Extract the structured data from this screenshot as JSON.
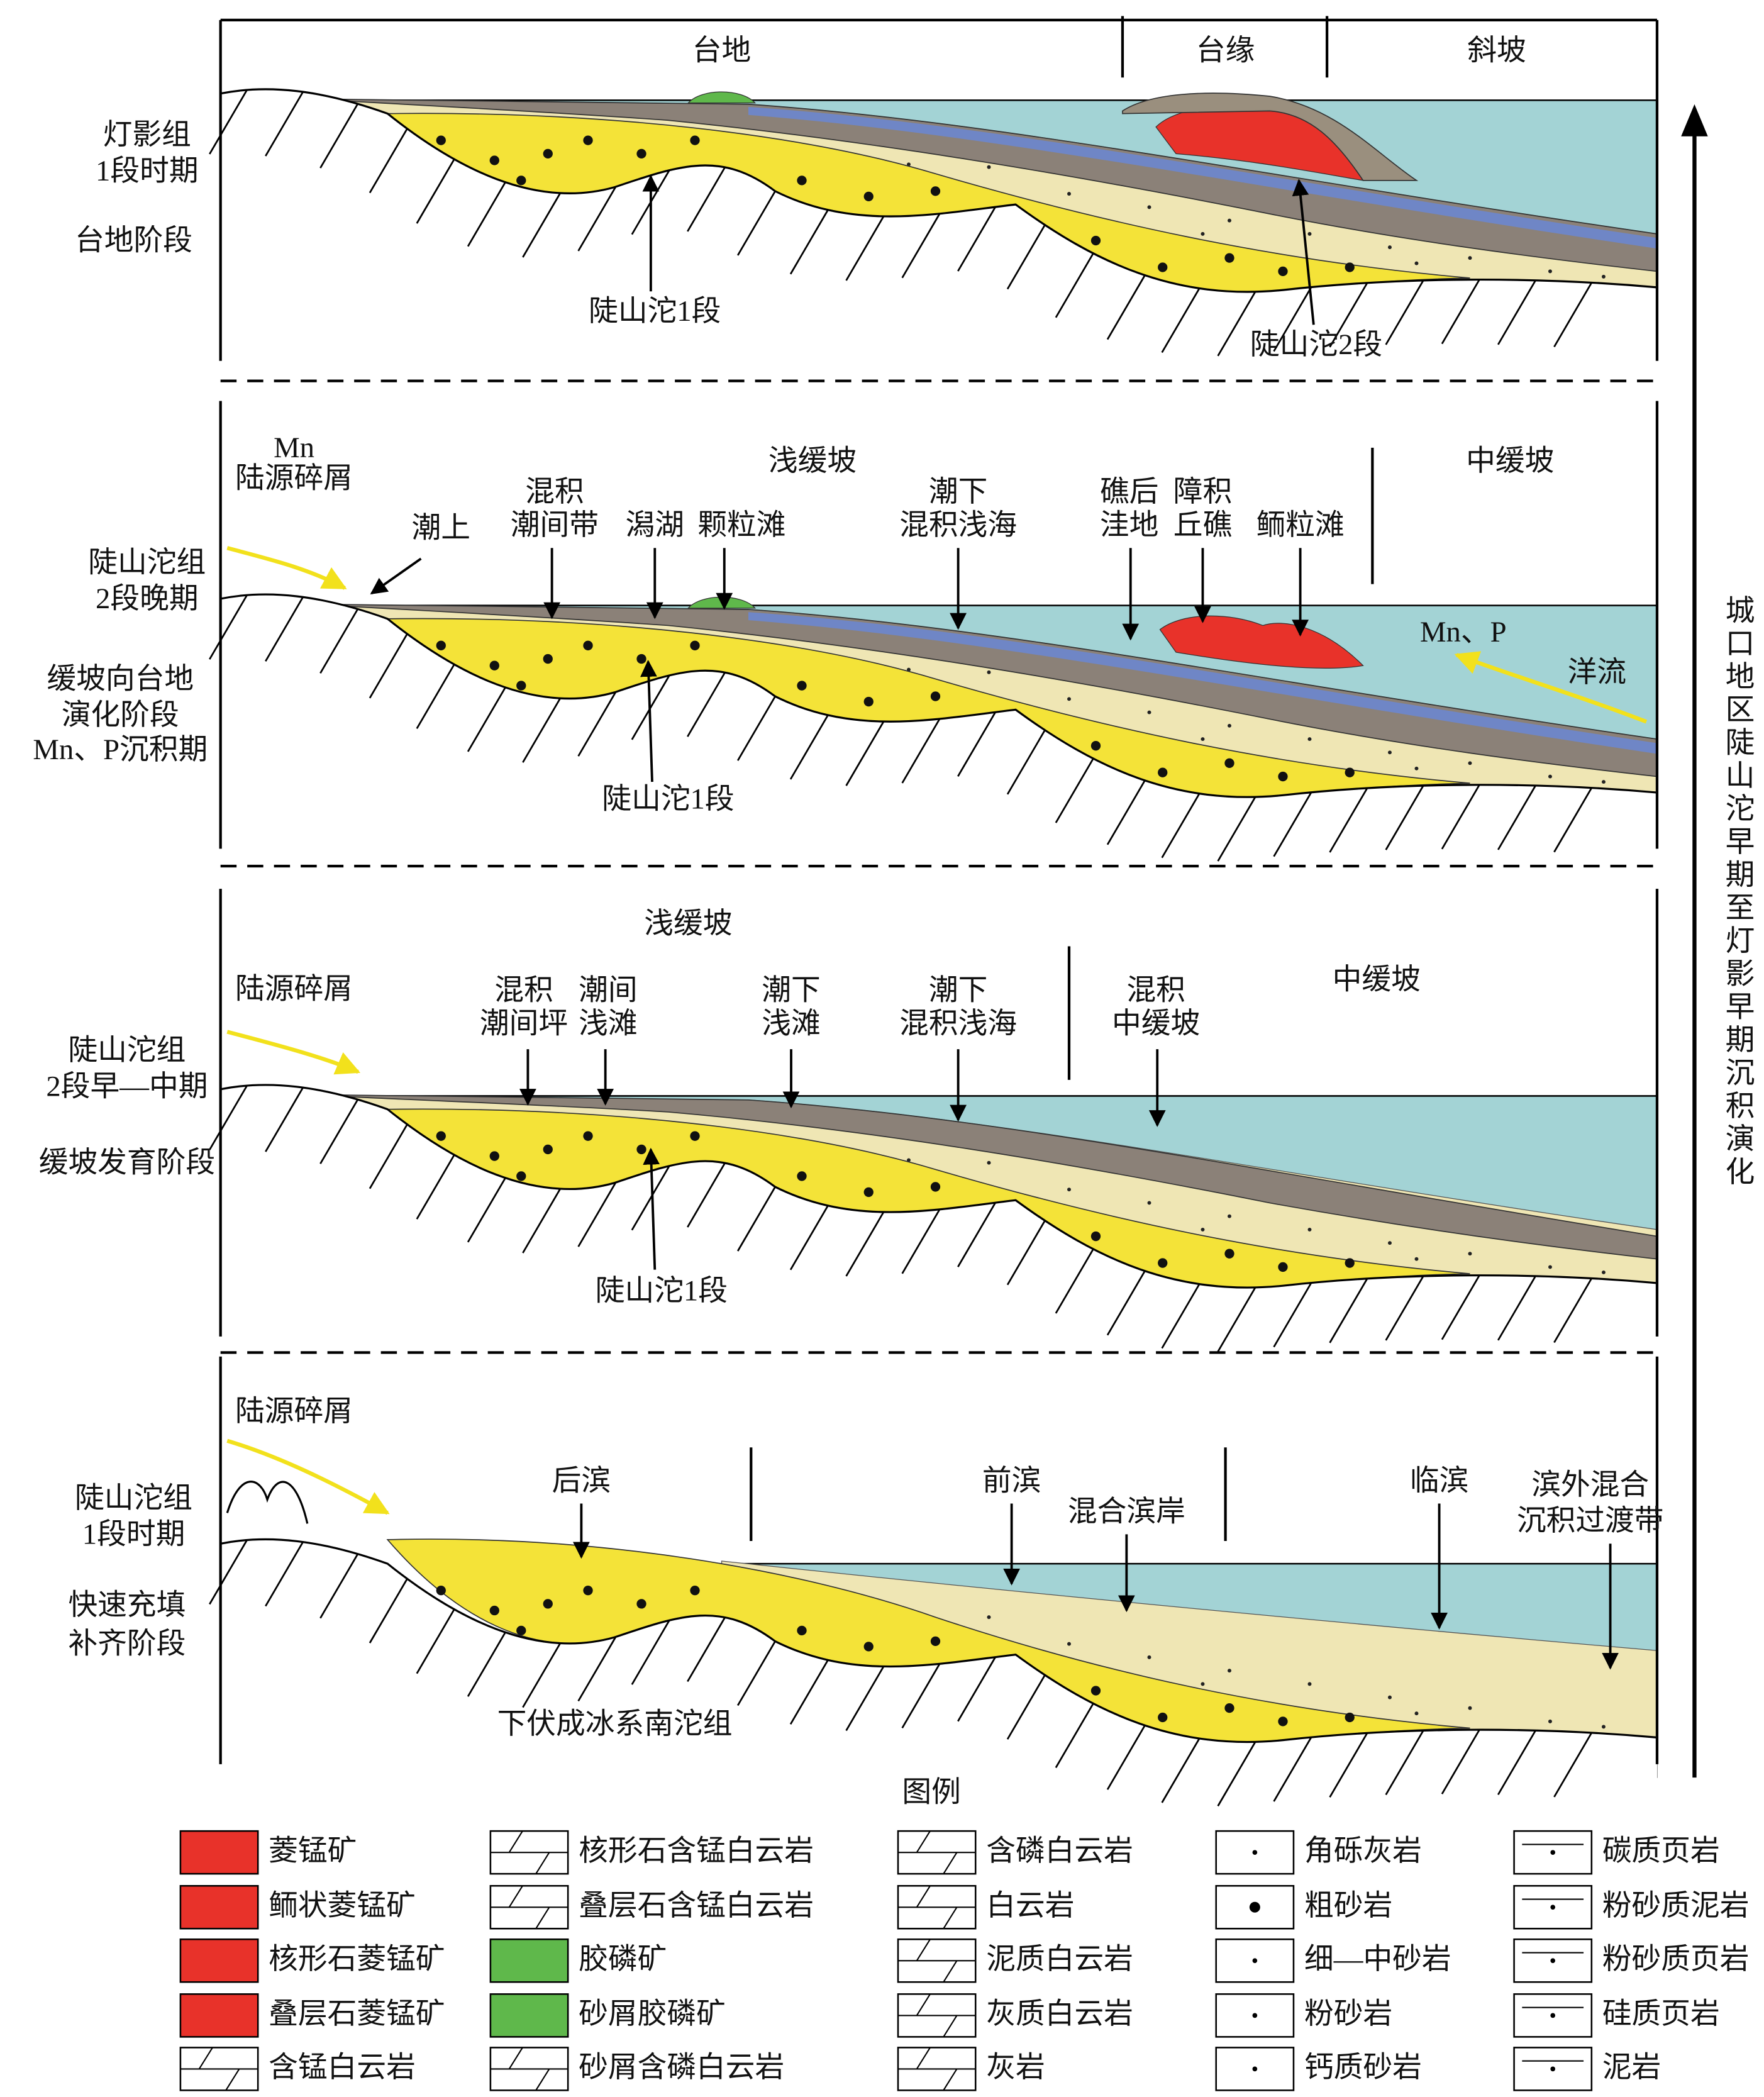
{
  "title": "城口地区陡山沱早期至灯影早期沉积演化",
  "panels": [
    {
      "stage": [
        "灯影组",
        "1段时期"
      ],
      "phase": [
        "台地阶段"
      ],
      "zones": [
        "台地",
        "台缘",
        "斜坡"
      ],
      "annotations": [
        {
          "lines": [
            "陡山沱1段"
          ]
        },
        {
          "lines": [
            "陡山沱2段"
          ]
        }
      ]
    },
    {
      "stage": [
        "陡山沱组",
        "2段晚期"
      ],
      "phase": [
        "缓坡向台地",
        "演化阶段",
        "Mn、P沉积期"
      ],
      "zones": [
        "浅缓坡",
        "中缓坡"
      ],
      "source": [
        "Mn",
        "陆源碎屑"
      ],
      "annotations": [
        {
          "lines": [
            "潮上"
          ]
        },
        {
          "lines": [
            "混积",
            "潮间带"
          ]
        },
        {
          "lines": [
            "潟湖"
          ]
        },
        {
          "lines": [
            "颗粒滩"
          ]
        },
        {
          "lines": [
            "潮下",
            "混积浅海"
          ]
        },
        {
          "lines": [
            "礁后",
            "洼地"
          ]
        },
        {
          "lines": [
            "障积",
            "丘礁"
          ]
        },
        {
          "lines": [
            "鲕粒滩"
          ]
        },
        {
          "lines": [
            "Mn、P"
          ]
        },
        {
          "lines": [
            "洋流"
          ]
        },
        {
          "lines": [
            "陡山沱1段"
          ]
        }
      ]
    },
    {
      "stage": [
        "陡山沱组",
        "2段早—中期"
      ],
      "phase": [
        "缓坡发育阶段"
      ],
      "zones": [
        "浅缓坡",
        "中缓坡"
      ],
      "source": [
        "陆源碎屑"
      ],
      "annotations": [
        {
          "lines": [
            "混积",
            "潮间坪"
          ]
        },
        {
          "lines": [
            "潮间",
            "浅滩"
          ]
        },
        {
          "lines": [
            "潮下",
            "浅滩"
          ]
        },
        {
          "lines": [
            "潮下",
            "混积浅海"
          ]
        },
        {
          "lines": [
            "混积",
            "中缓坡"
          ]
        },
        {
          "lines": [
            "陡山沱1段"
          ]
        }
      ]
    },
    {
      "stage": [
        "陡山沱组",
        "1段时期"
      ],
      "phase": [
        "快速充填",
        "补齐阶段"
      ],
      "source": [
        "陆源碎屑"
      ],
      "annotations": [
        {
          "lines": [
            "后滨"
          ]
        },
        {
          "lines": [
            "前滨"
          ]
        },
        {
          "lines": [
            "混合滨岸"
          ]
        },
        {
          "lines": [
            "临滨"
          ]
        },
        {
          "lines": [
            "滨外混合",
            "沉积过渡带"
          ]
        },
        {
          "lines": [
            "下伏成冰系南沱组"
          ]
        }
      ]
    }
  ],
  "legend": {
    "title": "图例",
    "items": [
      "菱锰矿",
      "鲕状菱锰矿",
      "核形石菱锰矿",
      "叠层石菱锰矿",
      "含锰白云岩",
      "核形石含锰白云岩",
      "叠层石含锰白云岩",
      "胶磷矿",
      "砂屑胶磷矿",
      "砂屑含磷白云岩",
      "含磷白云岩",
      "白云岩",
      "泥质白云岩",
      "灰质白云岩",
      "灰岩",
      "角砾灰岩",
      "粗砂岩",
      "细—中砂岩",
      "粉砂岩",
      "钙质砂岩",
      "碳质页岩",
      "粉砂质泥岩",
      "粉砂质页岩",
      "硅质页岩",
      "泥岩"
    ]
  }
}
